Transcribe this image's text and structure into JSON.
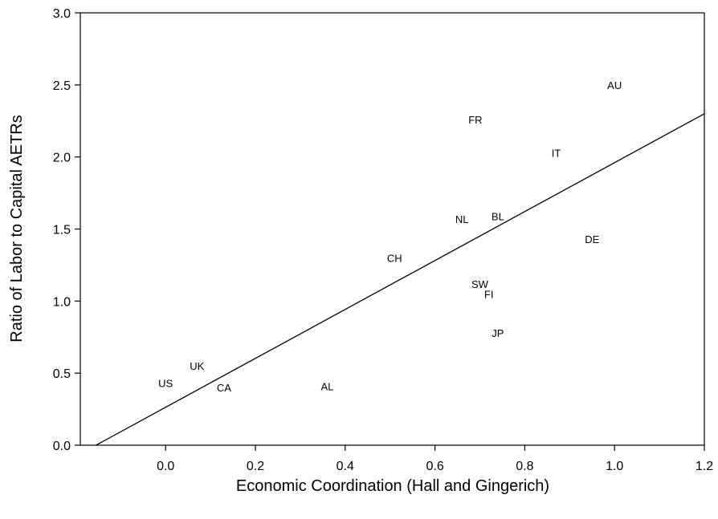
{
  "chart_data": {
    "type": "scatter",
    "title": "",
    "xlabel": "Economic Coordination (Hall and Gingerich)",
    "ylabel": "Ratio of Labor to Capital AETRs",
    "xlim": [
      -0.19,
      1.2
    ],
    "ylim": [
      0.0,
      3.0
    ],
    "xticks": [
      0.0,
      0.2,
      0.4,
      0.6,
      0.8,
      1.0,
      1.2
    ],
    "xtick_labels": [
      "0.0",
      "0.2",
      "0.4",
      "0.6",
      "0.8",
      "1.0",
      "1.2"
    ],
    "yticks": [
      0.0,
      0.5,
      1.0,
      1.5,
      2.0,
      2.5,
      3.0
    ],
    "ytick_labels": [
      "0.0",
      "0.5",
      "1.0",
      "1.5",
      "2.0",
      "2.5",
      "3.0"
    ],
    "grid": false,
    "points": [
      {
        "label": "US",
        "x": 0.0,
        "y": 0.43
      },
      {
        "label": "UK",
        "x": 0.07,
        "y": 0.55
      },
      {
        "label": "CA",
        "x": 0.13,
        "y": 0.4
      },
      {
        "label": "AL",
        "x": 0.36,
        "y": 0.41
      },
      {
        "label": "CH",
        "x": 0.51,
        "y": 1.3
      },
      {
        "label": "NL",
        "x": 0.66,
        "y": 1.57
      },
      {
        "label": "FR",
        "x": 0.69,
        "y": 2.26
      },
      {
        "label": "SW",
        "x": 0.7,
        "y": 1.12
      },
      {
        "label": "FI",
        "x": 0.72,
        "y": 1.05
      },
      {
        "label": "BL",
        "x": 0.74,
        "y": 1.59
      },
      {
        "label": "JP",
        "x": 0.74,
        "y": 0.78
      },
      {
        "label": "IT",
        "x": 0.87,
        "y": 2.03
      },
      {
        "label": "DE",
        "x": 0.95,
        "y": 1.43
      },
      {
        "label": "AU",
        "x": 1.0,
        "y": 2.5
      }
    ],
    "fit_line": {
      "x": [
        -0.155,
        1.2
      ],
      "y": [
        0.0,
        2.3
      ]
    }
  }
}
